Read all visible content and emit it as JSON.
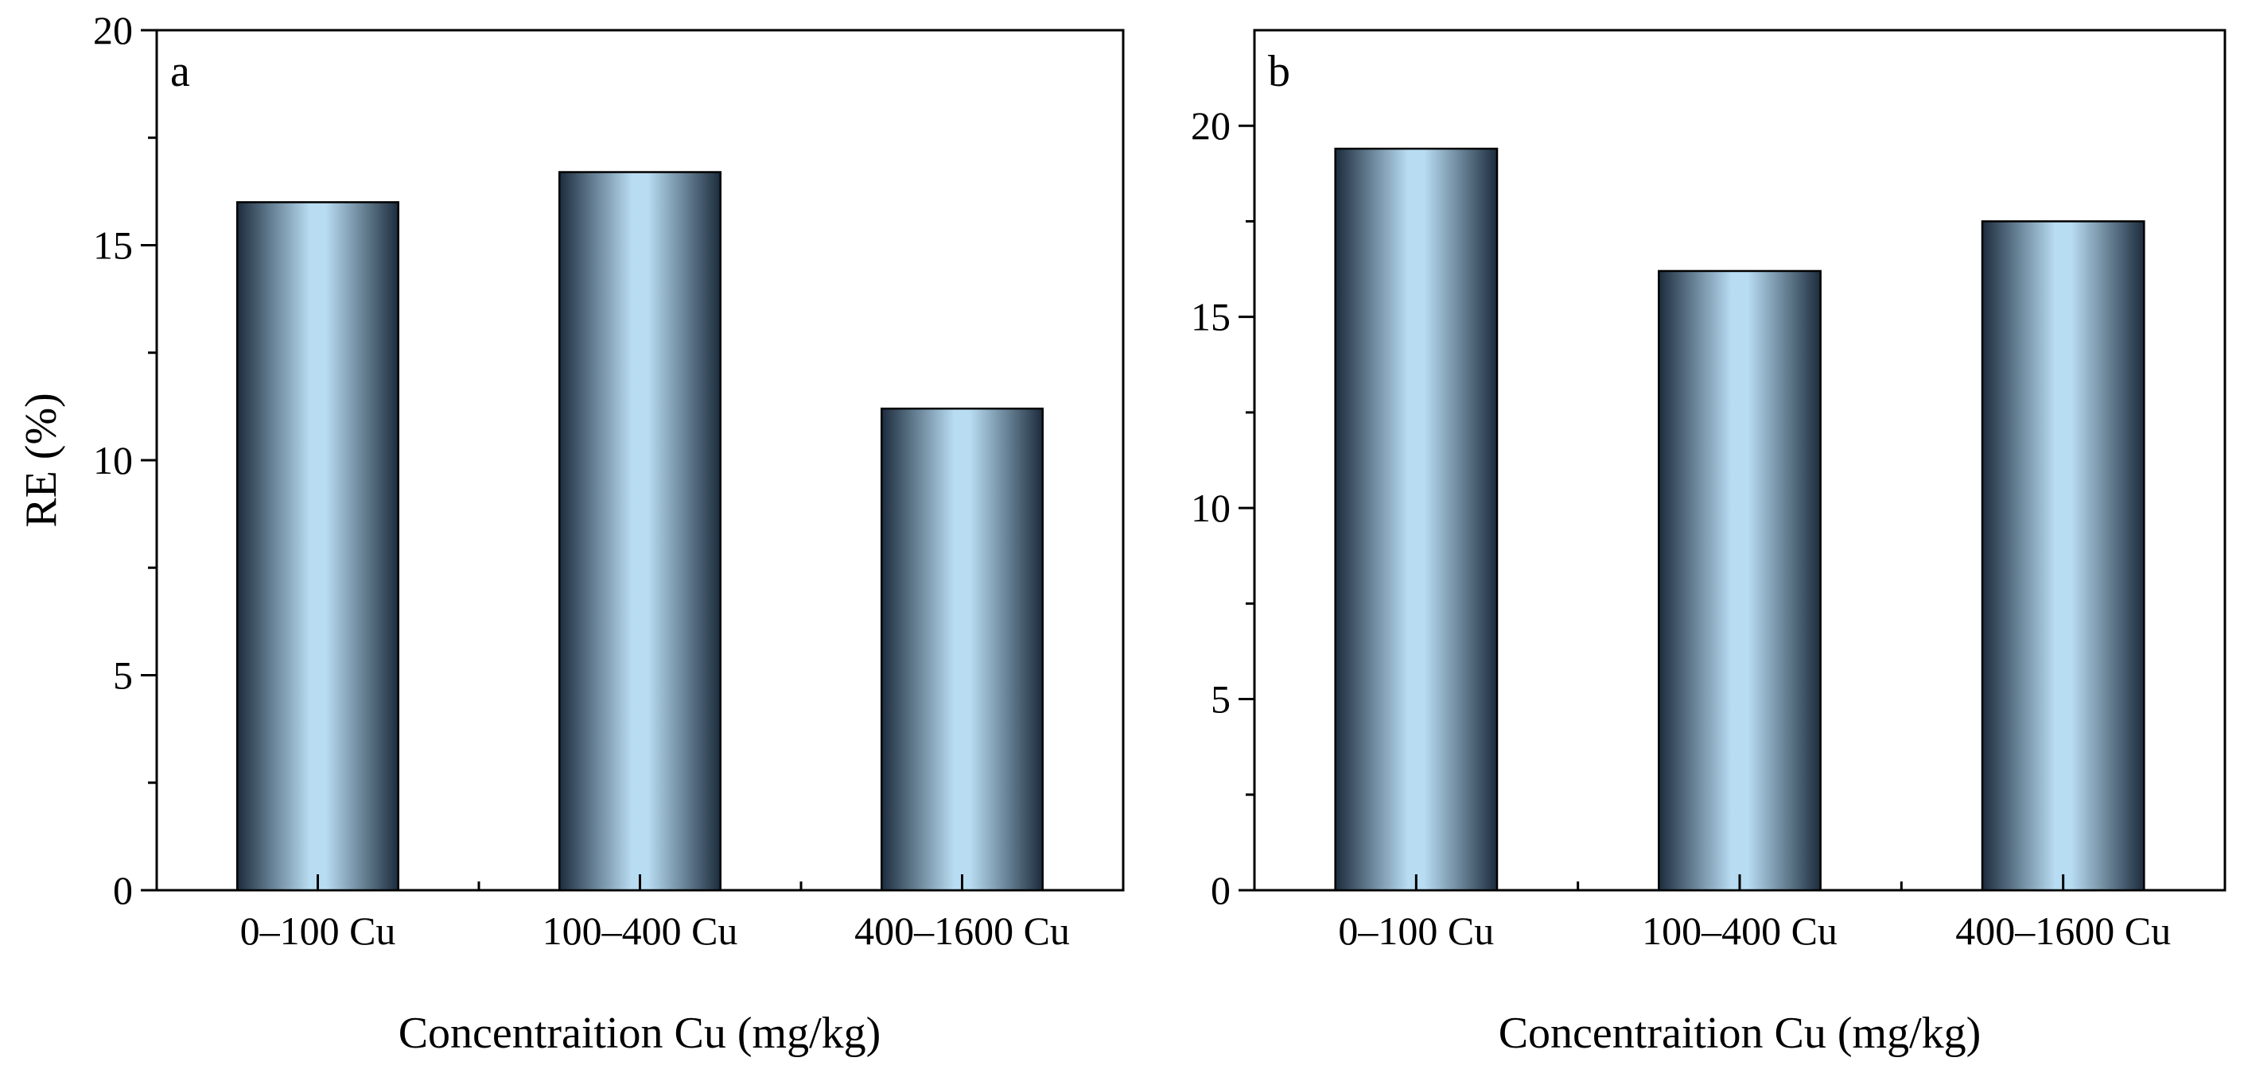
{
  "chart_data": [
    {
      "panel": "a",
      "type": "bar",
      "title": "",
      "xlabel": "Concentraition Cu (mg/kg)",
      "ylabel": "RE (%)",
      "categories": [
        "0–100 Cu",
        "100–400 Cu",
        "400–1600 Cu"
      ],
      "values": [
        16.0,
        16.7,
        11.2
      ],
      "ylim": [
        0,
        20
      ],
      "yticks": [
        0,
        5,
        10,
        15,
        20
      ],
      "grid": false
    },
    {
      "panel": "b",
      "type": "bar",
      "title": "",
      "xlabel": "Concentraition Cu (mg/kg)",
      "ylabel": "",
      "categories": [
        "0–100 Cu",
        "100–400 Cu",
        "400–1600 Cu"
      ],
      "values": [
        19.4,
        16.2,
        17.5
      ],
      "ylim": [
        0,
        22.5
      ],
      "yticks": [
        0,
        5,
        10,
        15,
        20
      ],
      "grid": false
    }
  ],
  "colors": {
    "bar_edge": "#1c2c3d",
    "bar_light": "#b8dcf2",
    "axis": "#000000"
  }
}
